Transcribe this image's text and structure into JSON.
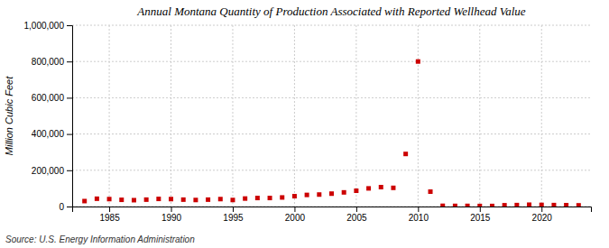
{
  "chart_data": {
    "type": "scatter",
    "title": "Annual Montana Quantity of Production Associated with Reported Wellhead Value",
    "ylabel": "Million Cubic Feet",
    "annotations": [
      "Source: U.S. Energy Information Administration"
    ],
    "color": "#cc0000",
    "marker": "square",
    "grid": true,
    "x": [
      1983,
      1984,
      1985,
      1986,
      1987,
      1988,
      1989,
      1990,
      1991,
      1992,
      1993,
      1994,
      1995,
      1996,
      1997,
      1998,
      1999,
      2000,
      2001,
      2002,
      2003,
      2004,
      2005,
      2006,
      2007,
      2008,
      2009,
      2010,
      2011,
      2012,
      2013,
      2014,
      2015,
      2016,
      2017,
      2018,
      2019,
      2020,
      2021,
      2022,
      2023
    ],
    "values": [
      30000,
      43000,
      41000,
      37000,
      35000,
      38000,
      42000,
      41000,
      38000,
      36000,
      38000,
      41000,
      36000,
      44000,
      47000,
      47000,
      50000,
      57000,
      64000,
      66000,
      71000,
      78000,
      87000,
      100000,
      107000,
      103000,
      290000,
      800000,
      82000,
      4000,
      3500,
      3500,
      3000,
      3000,
      7000,
      8000,
      10000,
      9000,
      8000,
      7500,
      6500
    ],
    "xlim": [
      1982,
      2024
    ],
    "xticks": [
      1985,
      1990,
      1995,
      2000,
      2005,
      2010,
      2015,
      2020
    ],
    "ylim": [
      0,
      1000000
    ],
    "yticks": [
      0,
      {
        "value": 200000,
        "label": "200,000"
      },
      {
        "value": 400000,
        "label": "400,000"
      },
      {
        "value": 600000,
        "label": "600,000"
      },
      {
        "value": 800000,
        "label": "800,000"
      },
      {
        "value": 1000000,
        "label": "1,000,000"
      }
    ]
  }
}
